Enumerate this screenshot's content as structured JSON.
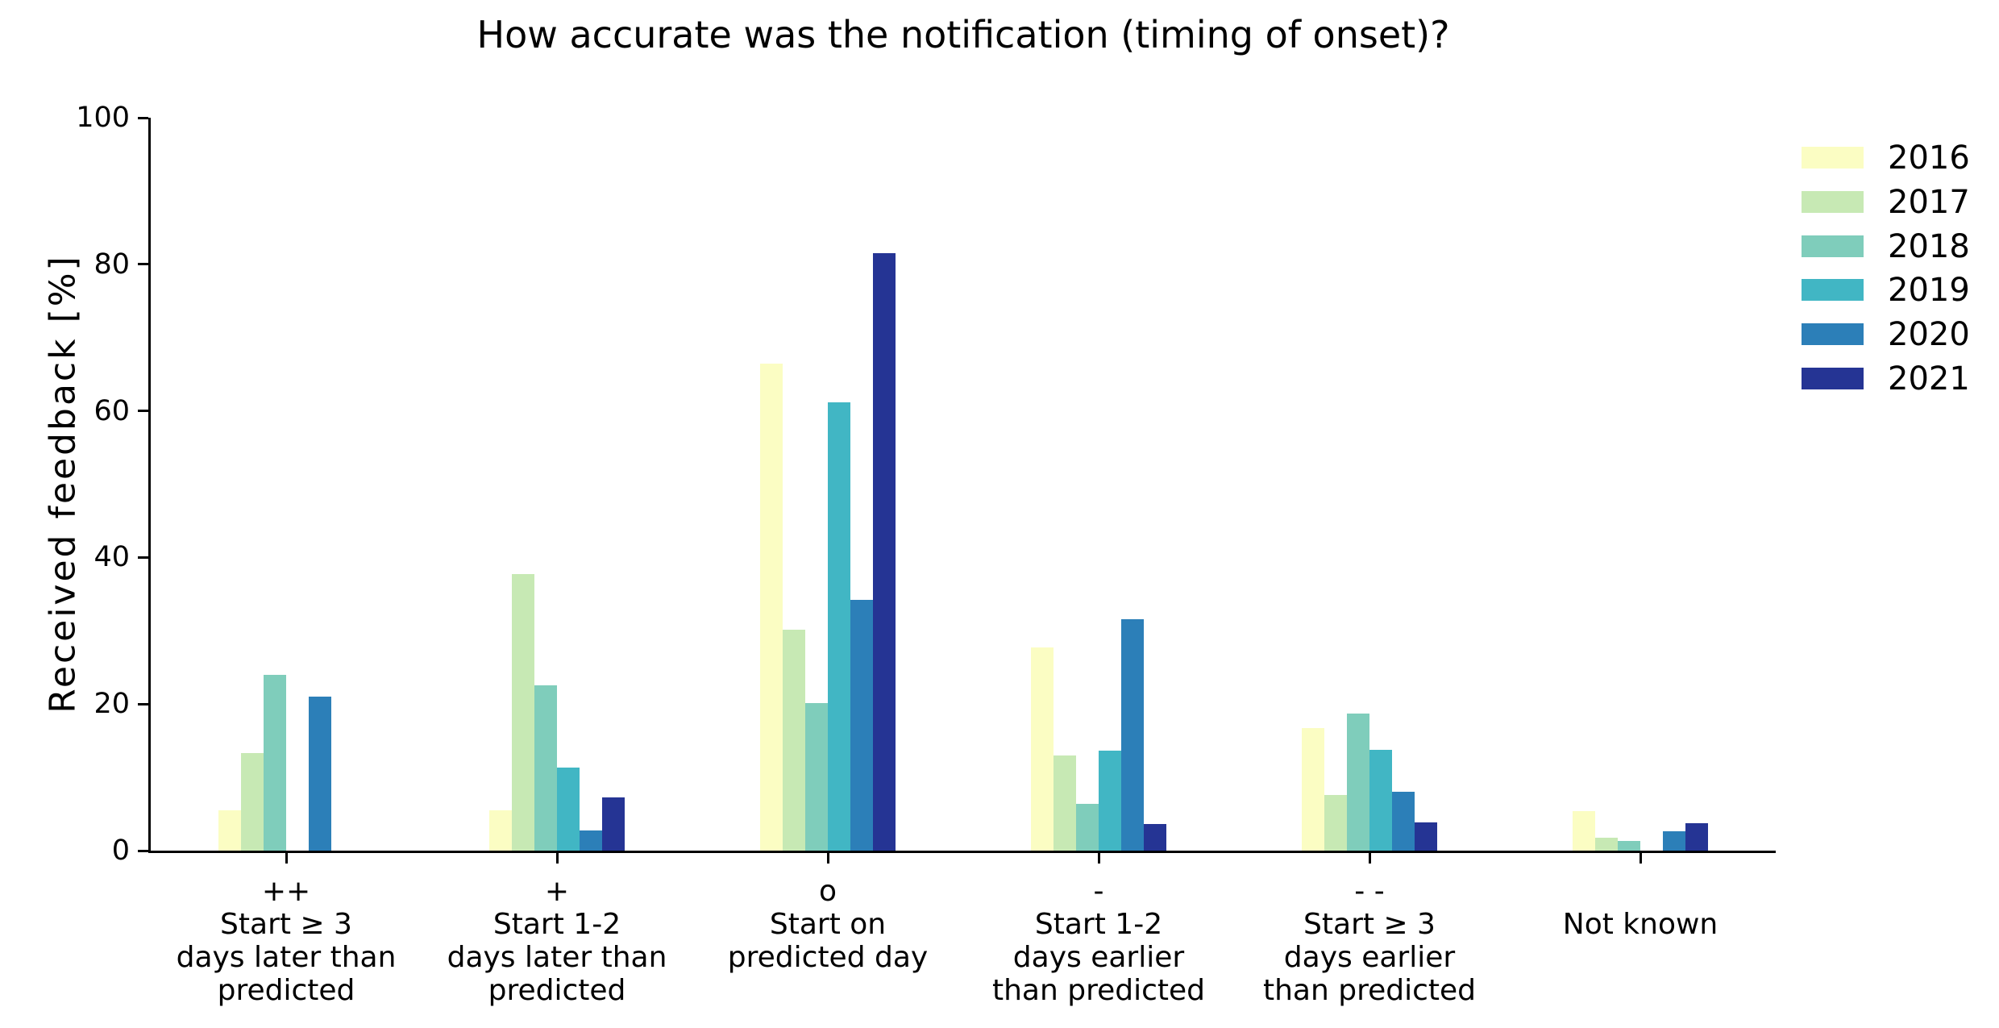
{
  "chart_data": {
    "type": "bar",
    "title": "How accurate was the notification (timing of onset)?",
    "ylabel": "Received feedback [%]",
    "xlabel": "",
    "ylim": [
      0,
      100
    ],
    "yticks": [
      0,
      20,
      40,
      60,
      80,
      100
    ],
    "grid": false,
    "legend_position": "outside-upper-right",
    "categories": [
      {
        "id": "start-3plus-days-later",
        "lines": [
          "++",
          "Start ≥ 3",
          "days later than",
          "predicted"
        ]
      },
      {
        "id": "start-1-2-days-later",
        "lines": [
          "+",
          "Start 1-2",
          "days later than",
          "predicted"
        ]
      },
      {
        "id": "start-on-predicted-day",
        "lines": [
          "o",
          "Start on",
          "predicted day"
        ]
      },
      {
        "id": "start-1-2-days-earlier",
        "lines": [
          "-",
          "Start 1-2",
          "days earlier",
          "than predicted"
        ]
      },
      {
        "id": "start-3plus-days-earlier",
        "lines": [
          "- -",
          "Start ≥ 3",
          "days earlier",
          "than predicted"
        ]
      },
      {
        "id": "not-known",
        "lines": [
          "",
          "Not known"
        ]
      }
    ],
    "series": [
      {
        "name": "2016",
        "color": "#fbfdc3",
        "values": [
          5.5,
          5.5,
          66.5,
          27.7,
          16.7,
          5.4
        ]
      },
      {
        "name": "2017",
        "color": "#c7e9b4",
        "values": [
          13.3,
          37.7,
          30.1,
          13.0,
          7.6,
          1.8
        ]
      },
      {
        "name": "2018",
        "color": "#7fcdbb",
        "values": [
          24.0,
          22.6,
          20.1,
          6.4,
          18.7,
          1.3
        ]
      },
      {
        "name": "2019",
        "color": "#41b6c4",
        "values": [
          0,
          11.3,
          61.2,
          13.6,
          13.7,
          0
        ]
      },
      {
        "name": "2020",
        "color": "#2c7fb8",
        "values": [
          21.0,
          2.7,
          34.2,
          31.6,
          8.0,
          2.6
        ]
      },
      {
        "name": "2021",
        "color": "#253494",
        "values": [
          0,
          7.3,
          81.5,
          3.6,
          3.9,
          3.7
        ]
      }
    ],
    "axis_color": "#000000"
  }
}
